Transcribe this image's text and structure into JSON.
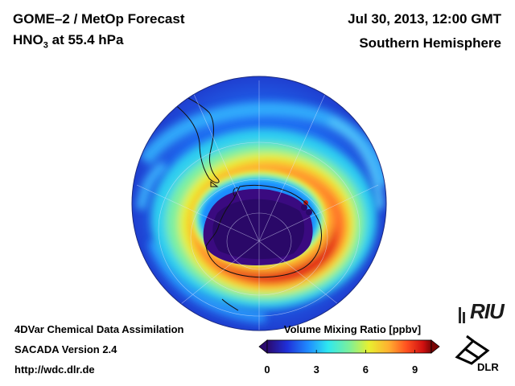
{
  "header": {
    "title_line1": "GOME–2 / MetOp Forecast",
    "title_species": "HNO",
    "title_subscript": "3",
    "title_level": " at 55.4 hPa",
    "date": "Jul 30, 2013, 12:00 GMT",
    "region": "Southern Hemisphere"
  },
  "footer": {
    "line1": "4DVar Chemical Data Assimilation",
    "line2": "SACADA Version 2.4",
    "line3": "http://wdc.dlr.de"
  },
  "colorbar": {
    "title": "Volume Mixing Ratio [ppbv]",
    "ticks": [
      "0",
      "3",
      "6",
      "9"
    ],
    "range": [
      0,
      10
    ],
    "colors": [
      "#2b0a6e",
      "#1f2fd8",
      "#1f8cff",
      "#2ee8f0",
      "#7cf09a",
      "#e8f030",
      "#ffb030",
      "#ff5020",
      "#d01010",
      "#7a0505"
    ]
  },
  "map": {
    "projection": "orthographic, South Pole centred",
    "field": "HNO3 volume mixing ratio",
    "min_value_region": "polar vortex core over Antarctica (< 1 ppbv)",
    "max_value_region": "vortex collar ring (8–10 ppbv)"
  },
  "logos": {
    "riu": "RIU",
    "dlr": "DLR"
  }
}
